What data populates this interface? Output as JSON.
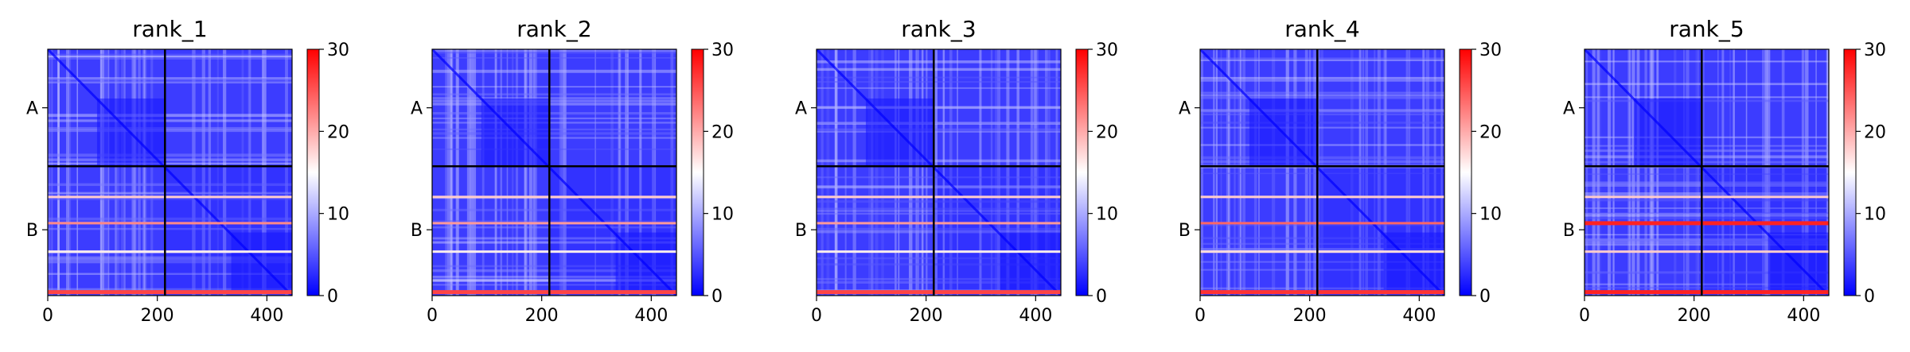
{
  "figure": {
    "background": "#ffffff",
    "colormap": {
      "name": "bwr",
      "low": "#0000ff",
      "mid": "#ffffff",
      "high": "#ff0000"
    }
  },
  "chart_data": [
    {
      "type": "heatmap",
      "title": "rank_1",
      "xlabel": "",
      "ylabel": "",
      "x_ticks": [
        0,
        200,
        400
      ],
      "xlim": [
        0,
        446
      ],
      "chain_boundary": 214,
      "chains": [
        {
          "label": "A",
          "range": [
            0,
            214
          ]
        },
        {
          "label": "B",
          "range": [
            214,
            446
          ]
        }
      ],
      "colorbar": {
        "range": [
          0,
          30
        ],
        "ticks": [
          0,
          10,
          20,
          30
        ]
      },
      "bright_rows": [
        {
          "pos": 270,
          "value": 18
        },
        {
          "pos": 318,
          "value": 22
        },
        {
          "pos": 370,
          "value": 16
        },
        {
          "pos": 444,
          "value": 26
        }
      ]
    },
    {
      "type": "heatmap",
      "title": "rank_2",
      "xlabel": "",
      "ylabel": "",
      "x_ticks": [
        0,
        200,
        400
      ],
      "xlim": [
        0,
        446
      ],
      "chain_boundary": 214,
      "chains": [
        {
          "label": "A",
          "range": [
            0,
            214
          ]
        },
        {
          "label": "B",
          "range": [
            214,
            446
          ]
        }
      ],
      "colorbar": {
        "range": [
          0,
          30
        ],
        "ticks": [
          0,
          10,
          20,
          30
        ]
      },
      "bright_rows": [
        {
          "pos": 270,
          "value": 18
        },
        {
          "pos": 318,
          "value": 21
        },
        {
          "pos": 370,
          "value": 16
        },
        {
          "pos": 444,
          "value": 26
        }
      ]
    },
    {
      "type": "heatmap",
      "title": "rank_3",
      "xlabel": "",
      "ylabel": "",
      "x_ticks": [
        0,
        200,
        400
      ],
      "xlim": [
        0,
        446
      ],
      "chain_boundary": 214,
      "chains": [
        {
          "label": "A",
          "range": [
            0,
            214
          ]
        },
        {
          "label": "B",
          "range": [
            214,
            446
          ]
        }
      ],
      "colorbar": {
        "range": [
          0,
          30
        ],
        "ticks": [
          0,
          10,
          20,
          30
        ]
      },
      "bright_rows": [
        {
          "pos": 270,
          "value": 18
        },
        {
          "pos": 318,
          "value": 21
        },
        {
          "pos": 370,
          "value": 16
        },
        {
          "pos": 444,
          "value": 26
        }
      ]
    },
    {
      "type": "heatmap",
      "title": "rank_4",
      "xlabel": "",
      "ylabel": "",
      "x_ticks": [
        0,
        200,
        400
      ],
      "xlim": [
        0,
        446
      ],
      "chain_boundary": 214,
      "chains": [
        {
          "label": "A",
          "range": [
            0,
            214
          ]
        },
        {
          "label": "B",
          "range": [
            214,
            446
          ]
        }
      ],
      "colorbar": {
        "range": [
          0,
          30
        ],
        "ticks": [
          0,
          10,
          20,
          30
        ]
      },
      "bright_rows": [
        {
          "pos": 270,
          "value": 18
        },
        {
          "pos": 318,
          "value": 24
        },
        {
          "pos": 370,
          "value": 17
        },
        {
          "pos": 444,
          "value": 27
        }
      ]
    },
    {
      "type": "heatmap",
      "title": "rank_5",
      "xlabel": "",
      "ylabel": "",
      "x_ticks": [
        0,
        200,
        400
      ],
      "xlim": [
        0,
        446
      ],
      "chain_boundary": 214,
      "chains": [
        {
          "label": "A",
          "range": [
            0,
            214
          ]
        },
        {
          "label": "B",
          "range": [
            214,
            446
          ]
        }
      ],
      "colorbar": {
        "range": [
          0,
          30
        ],
        "ticks": [
          0,
          10,
          20,
          30
        ]
      },
      "bright_rows": [
        {
          "pos": 270,
          "value": 18
        },
        {
          "pos": 318,
          "value": 28
        },
        {
          "pos": 370,
          "value": 18
        },
        {
          "pos": 444,
          "value": 28
        }
      ]
    }
  ]
}
